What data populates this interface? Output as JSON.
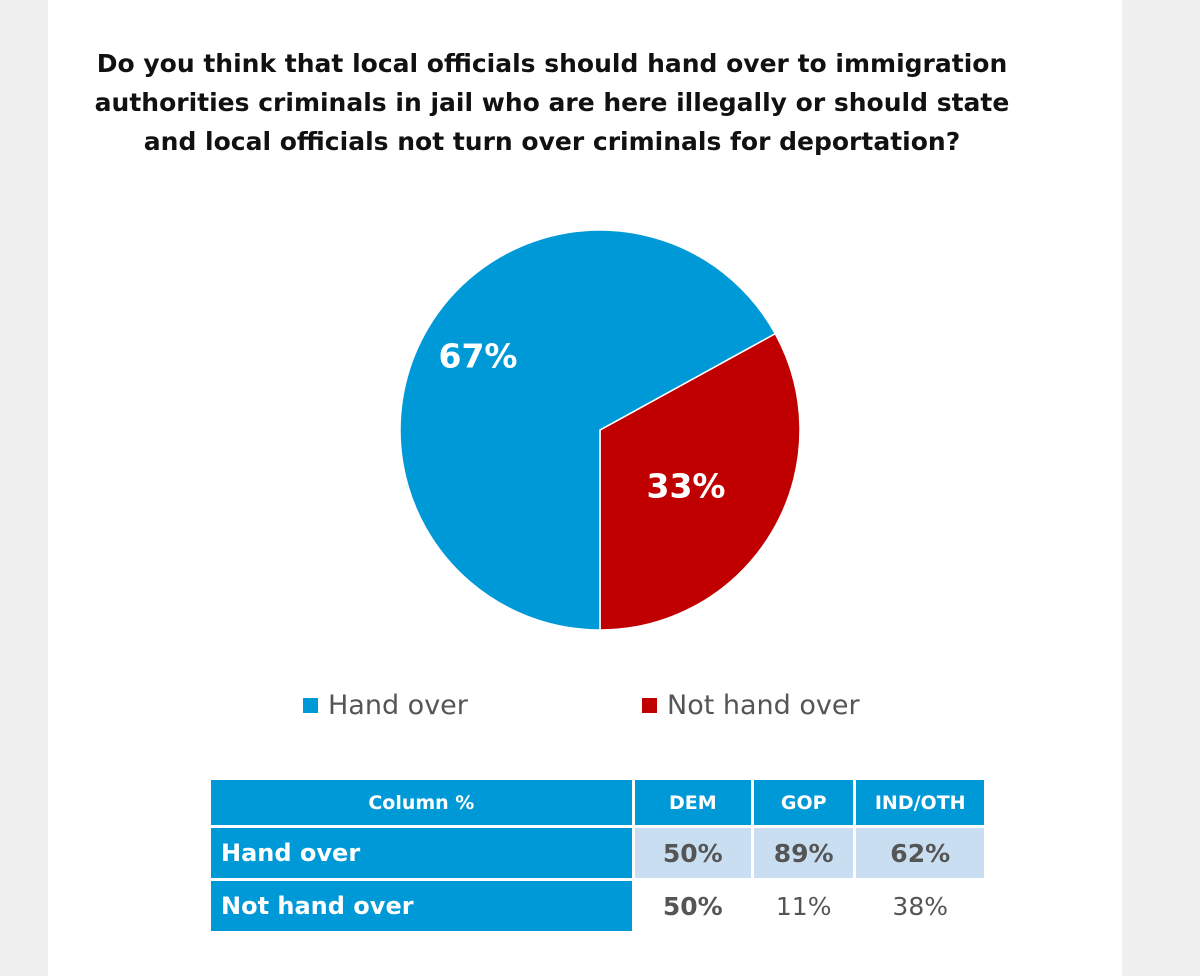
{
  "title_lines": [
    "Do you think that local officials should hand over to immigration",
    "authorities criminals in jail who are here illegally or should state",
    "and local officials not turn over criminals for deportation?"
  ],
  "colors": {
    "hand_over": "#0099d8",
    "not_hand_over": "#c00000"
  },
  "chart_data": {
    "type": "pie",
    "title": "Do you think that local officials should hand over to immigration authorities criminals in jail who are here illegally or should state and local officials not turn over criminals for deportation?",
    "slices": [
      {
        "label": "Hand over",
        "value": 67,
        "display": "67%",
        "color": "#0099d8"
      },
      {
        "label": "Not hand over",
        "value": 33,
        "display": "33%",
        "color": "#c00000"
      }
    ],
    "legend": [
      "Hand over",
      "Not hand over"
    ],
    "legend_position": "bottom"
  },
  "table": {
    "header": [
      "Column %",
      "DEM",
      "GOP",
      "IND/OTH"
    ],
    "rows": [
      {
        "label": "Hand over",
        "values": [
          "50%",
          "89%",
          "62%"
        ]
      },
      {
        "label": "Not hand over",
        "values": [
          "50%",
          "11%",
          "38%"
        ]
      }
    ]
  }
}
